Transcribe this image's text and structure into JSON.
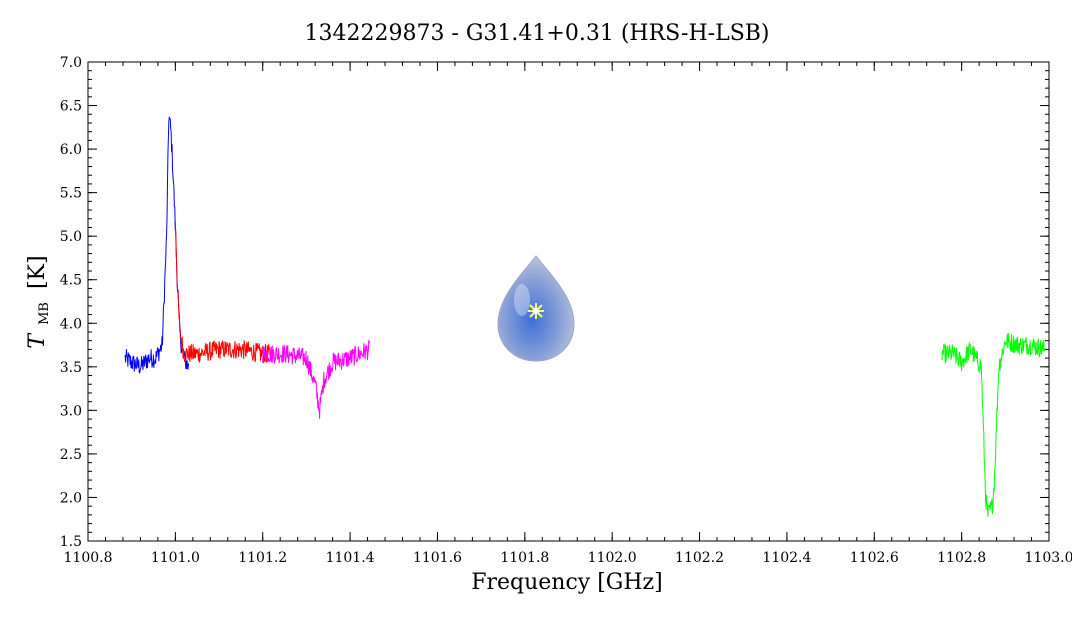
{
  "chart_data": {
    "type": "line",
    "title": "1342229873 - G31.41+0.31 (HRS-H-LSB)",
    "xlabel": "Frequency [GHz]",
    "ylabel_main": "T",
    "ylabel_sub": "MB",
    "ylabel_unit": "[K]",
    "xlim": [
      1100.8,
      1103.0
    ],
    "ylim": [
      1.5,
      7.0
    ],
    "x_ticks": [
      "1100.8",
      "1101.0",
      "1101.2",
      "1101.4",
      "1101.6",
      "1101.8",
      "1102.0",
      "1102.2",
      "1102.4",
      "1102.6",
      "1102.8",
      "1103.0"
    ],
    "y_ticks": [
      "1.5",
      "2.0",
      "2.5",
      "3.0",
      "3.5",
      "4.0",
      "4.5",
      "5.0",
      "5.5",
      "6.0",
      "6.5",
      "7.0"
    ],
    "x_tick_values": [
      1100.8,
      1101.0,
      1101.2,
      1101.4,
      1101.6,
      1101.8,
      1102.0,
      1102.2,
      1102.4,
      1102.6,
      1102.8,
      1103.0
    ],
    "y_tick_values": [
      1.5,
      2.0,
      2.5,
      3.0,
      3.5,
      4.0,
      4.5,
      5.0,
      5.5,
      6.0,
      6.5,
      7.0
    ],
    "grid": false,
    "series": [
      {
        "color": "#0000ff",
        "x": [
          1100.885,
          1100.9,
          1100.92,
          1100.94,
          1100.955,
          1100.97,
          1100.98,
          1100.985,
          1100.99,
          1100.995,
          1101.0,
          1101.005,
          1101.01,
          1101.015,
          1101.02,
          1101.03
        ],
        "y": [
          3.6,
          3.55,
          3.5,
          3.6,
          3.6,
          3.75,
          5.0,
          6.4,
          6.2,
          5.7,
          5.1,
          4.4,
          3.9,
          3.7,
          3.6,
          3.5
        ]
      },
      {
        "color": "#ff0000",
        "x": [
          1101.0,
          1101.005,
          1101.01,
          1101.02,
          1101.05,
          1101.1,
          1101.15,
          1101.2,
          1101.22
        ],
        "y": [
          5.2,
          4.4,
          3.9,
          3.65,
          3.65,
          3.7,
          3.7,
          3.65,
          3.65
        ]
      },
      {
        "color": "#ff00ff",
        "x": [
          1101.2,
          1101.25,
          1101.3,
          1101.32,
          1101.33,
          1101.34,
          1101.36,
          1101.4,
          1101.445
        ],
        "y": [
          3.65,
          3.65,
          3.6,
          3.3,
          3.0,
          3.35,
          3.55,
          3.6,
          3.7
        ]
      },
      {
        "color": "#00ff00",
        "x": [
          1102.755,
          1102.78,
          1102.8,
          1102.82,
          1102.845,
          1102.855,
          1102.86,
          1102.87,
          1102.875,
          1102.885,
          1102.9,
          1102.93,
          1102.96,
          1102.99
        ],
        "y": [
          3.65,
          3.65,
          3.55,
          3.7,
          3.5,
          2.0,
          1.8,
          1.9,
          2.2,
          3.5,
          3.8,
          3.75,
          3.75,
          3.7
        ]
      }
    ]
  }
}
